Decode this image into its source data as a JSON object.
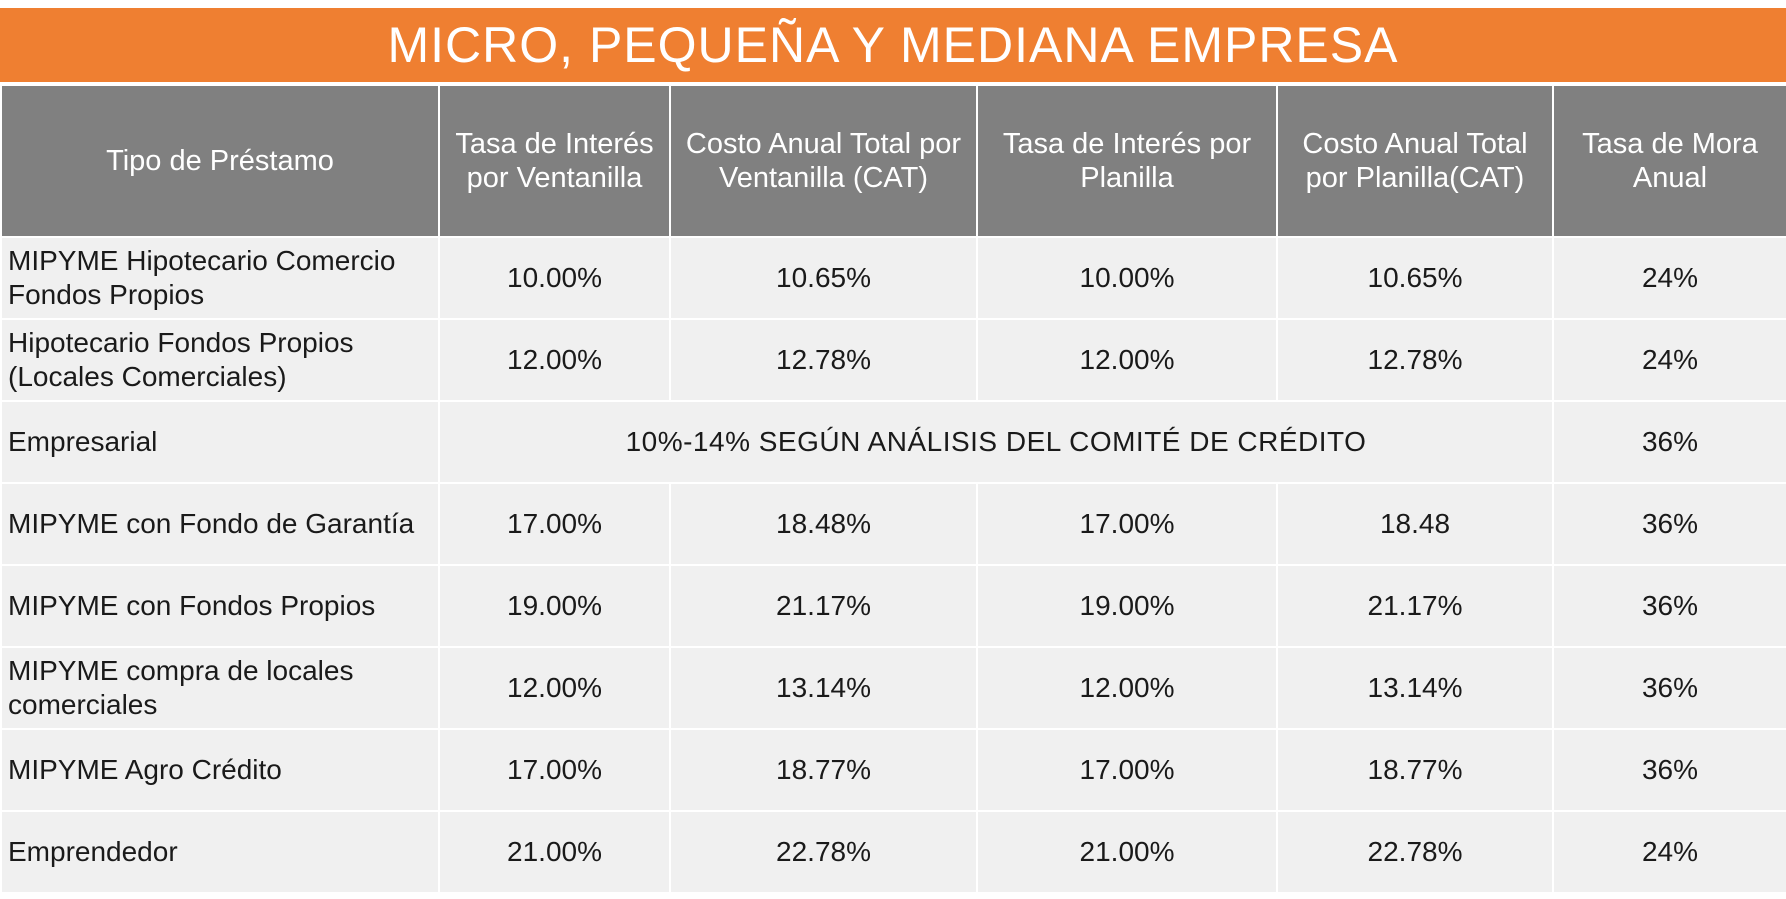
{
  "title": "MICRO, PEQUEÑA Y MEDIANA EMPRESA",
  "headers": {
    "tipo": "Tipo de Préstamo",
    "tasa_ventanilla": "Tasa de Interés por Ventanilla",
    "cat_ventanilla": "Costo Anual Total por Ventanilla (CAT)",
    "tasa_planilla": "Tasa de Interés por Planilla",
    "cat_planilla": "Costo Anual Total por Planilla(CAT)",
    "mora": "Tasa de Mora Anual"
  },
  "rows": [
    {
      "tipo": "MIPYME Hipotecario Comercio Fondos Propios",
      "tasa_ventanilla": "10.00%",
      "cat_ventanilla": "10.65%",
      "tasa_planilla": "10.00%",
      "cat_planilla": "10.65%",
      "mora": "24%"
    },
    {
      "tipo": "Hipotecario Fondos Propios (Locales Comerciales)",
      "tasa_ventanilla": "12.00%",
      "cat_ventanilla": "12.78%",
      "tasa_planilla": "12.00%",
      "cat_planilla": "12.78%",
      "mora": "24%"
    },
    {
      "tipo": "Empresarial",
      "note": "10%-14% SEGÚN ANÁLISIS DEL COMITÉ DE CRÉDITO",
      "mora": "36%"
    },
    {
      "tipo": "MIPYME con Fondo de Garantía",
      "tasa_ventanilla": "17.00%",
      "cat_ventanilla": "18.48%",
      "tasa_planilla": "17.00%",
      "cat_planilla": "18.48",
      "mora": "36%"
    },
    {
      "tipo": "MIPYME con Fondos Propios",
      "tasa_ventanilla": "19.00%",
      "cat_ventanilla": "21.17%",
      "tasa_planilla": "19.00%",
      "cat_planilla": "21.17%",
      "mora": "36%"
    },
    {
      "tipo": "MIPYME compra de locales comerciales",
      "tasa_ventanilla": "12.00%",
      "cat_ventanilla": "13.14%",
      "tasa_planilla": "12.00%",
      "cat_planilla": "13.14%",
      "mora": "36%"
    },
    {
      "tipo": "MIPYME Agro Crédito",
      "tasa_ventanilla": "17.00%",
      "cat_ventanilla": "18.77%",
      "tasa_planilla": "17.00%",
      "cat_planilla": "18.77%",
      "mora": "36%"
    },
    {
      "tipo": "Emprendedor",
      "tasa_ventanilla": "21.00%",
      "cat_ventanilla": "22.78%",
      "tasa_planilla": "21.00%",
      "cat_planilla": "22.78%",
      "mora": "24%"
    }
  ],
  "colors": {
    "title_bg": "#ef7f31",
    "header_bg": "#808080",
    "row_bg": "#f0f0f0"
  }
}
